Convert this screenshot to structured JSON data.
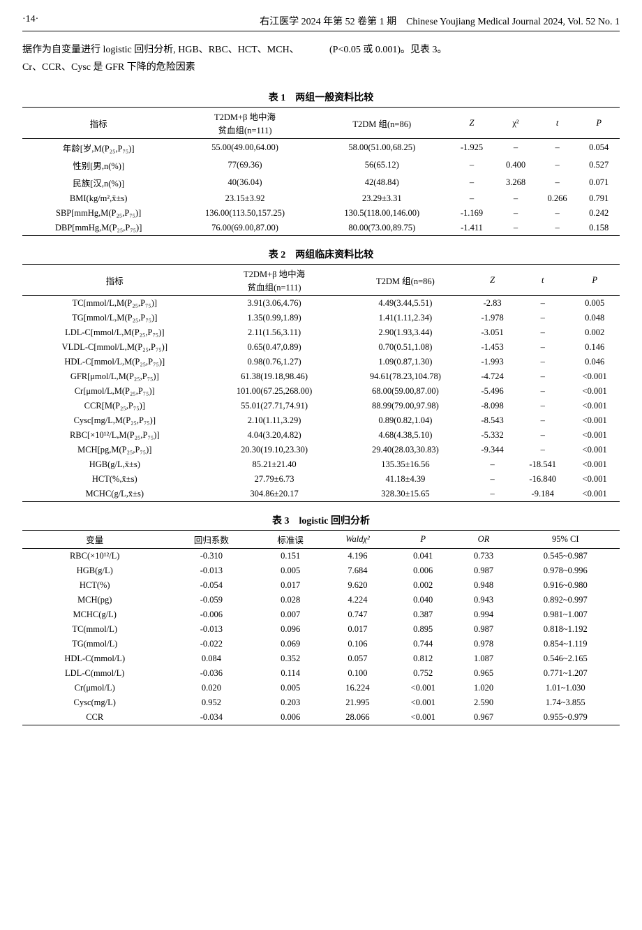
{
  "header": {
    "page": "·14·",
    "center_cn": "右江医学 2024 年第 52 卷第 1 期",
    "right_en": "Chinese Youjiang Medical Journal 2024, Vol. 52 No. 1"
  },
  "body": {
    "left": "据作为自变量进行 logistic 回归分析, HGB、RBC、HCT、MCH、Cr、CCR、Cysc 是 GFR 下降的危险因素",
    "right": "(P<0.05 或 0.001)。见表 3。"
  },
  "tables": {
    "t1": {
      "title": "表 1　两组一般资料比较",
      "head": [
        "指标",
        "T2DM+β 地中海\n贫血组(n=111)",
        "T2DM 组(n=86)",
        "Z",
        "χ²",
        "t",
        "P"
      ],
      "rows": [
        [
          "年龄[岁,M(P₂₅,P₇₅)]",
          "55.00(49.00,64.00)",
          "58.00(51.00,68.25)",
          "-1.925",
          "–",
          "–",
          "0.054"
        ],
        [
          "性别[男,n(%)]",
          "77(69.36)",
          "56(65.12)",
          "–",
          "0.400",
          "–",
          "0.527"
        ],
        [
          "民族[汉,n(%)]",
          "40(36.04)",
          "42(48.84)",
          "–",
          "3.268",
          "–",
          "0.071"
        ],
        [
          "BMI(kg/m²,x̄±s)",
          "23.15±3.92",
          "23.29±3.31",
          "–",
          "–",
          "0.266",
          "0.791"
        ],
        [
          "SBP[mmHg,M(P₂₅,P₇₅)]",
          "136.00(113.50,157.25)",
          "130.5(118.00,146.00)",
          "-1.169",
          "–",
          "–",
          "0.242"
        ],
        [
          "DBP[mmHg,M(P₂₅,P₇₅)]",
          "76.00(69.00,87.00)",
          "80.00(73.00,89.75)",
          "-1.411",
          "–",
          "–",
          "0.158"
        ]
      ]
    },
    "t2": {
      "title": "表 2　两组临床资料比较",
      "head": [
        "指标",
        "T2DM+β 地中海\n贫血组(n=111)",
        "T2DM 组(n=86)",
        "Z",
        "t",
        "P"
      ],
      "rows": [
        [
          "TC[mmol/L,M(P₂₅,P₇₅)]",
          "3.91(3.06,4.76)",
          "4.49(3.44,5.51)",
          "-2.83",
          "–",
          "0.005"
        ],
        [
          "TG[mmol/L,M(P₂₅,P₇₅)]",
          "1.35(0.99,1.89)",
          "1.41(1.11,2.34)",
          "-1.978",
          "–",
          "0.048"
        ],
        [
          "LDL-C[mmol/L,M(P₂₅,P₇₅)]",
          "2.11(1.56,3.11)",
          "2.90(1.93,3.44)",
          "-3.051",
          "–",
          "0.002"
        ],
        [
          "VLDL-C[mmol/L,M(P₂₅,P₇₅)]",
          "0.65(0.47,0.89)",
          "0.70(0.51,1.08)",
          "-1.453",
          "–",
          "0.146"
        ],
        [
          "HDL-C[mmol/L,M(P₂₅,P₇₅)]",
          "0.98(0.76,1.27)",
          "1.09(0.87,1.30)",
          "-1.993",
          "–",
          "0.046"
        ],
        [
          "GFR[μmol/L,M(P₂₅,P₇₅)]",
          "61.38(19.18,98.46)",
          "94.61(78.23,104.78)",
          "-4.724",
          "–",
          "<0.001"
        ],
        [
          "Cr[μmol/L,M(P₂₅,P₇₅)]",
          "101.00(67.25,268.00)",
          "68.00(59.00,87.00)",
          "-5.496",
          "–",
          "<0.001"
        ],
        [
          "CCR[M(P₂₅,P₇₅)]",
          "55.01(27.71,74.91)",
          "88.99(79.00,97.98)",
          "-8.098",
          "–",
          "<0.001"
        ],
        [
          "Cysc[mg/L,M(P₂₅,P₇₅)]",
          "2.10(1.11,3.29)",
          "0.89(0.82,1.04)",
          "-8.543",
          "–",
          "<0.001"
        ],
        [
          "RBC[×10¹²/L,M(P₂₅,P₇₅)]",
          "4.04(3.20,4.82)",
          "4.68(4.38,5.10)",
          "-5.332",
          "–",
          "<0.001"
        ],
        [
          "MCH[pg,M(P₂₅,P₇₅)]",
          "20.30(19.10,23.30)",
          "29.40(28.03,30.83)",
          "-9.344",
          "–",
          "<0.001"
        ],
        [
          "HGB(g/L,x̄±s)",
          "85.21±21.40",
          "135.35±16.56",
          "–",
          "-18.541",
          "<0.001"
        ],
        [
          "HCT(%,x̄±s)",
          "27.79±6.73",
          "41.18±4.39",
          "–",
          "-16.840",
          "<0.001"
        ],
        [
          "MCHC(g/L,x̄±s)",
          "304.86±20.17",
          "328.30±15.65",
          "–",
          "-9.184",
          "<0.001"
        ]
      ]
    },
    "t3": {
      "title": "表 3　logistic 回归分析",
      "head": [
        "变量",
        "回归系数",
        "标准误",
        "Waldχ²",
        "P",
        "OR",
        "95% CI"
      ],
      "rows": [
        [
          "RBC(×10¹²/L)",
          "-0.310",
          "0.151",
          "4.196",
          "0.041",
          "0.733",
          "0.545~0.987"
        ],
        [
          "HGB(g/L)",
          "-0.013",
          "0.005",
          "7.684",
          "0.006",
          "0.987",
          "0.978~0.996"
        ],
        [
          "HCT(%)",
          "-0.054",
          "0.017",
          "9.620",
          "0.002",
          "0.948",
          "0.916~0.980"
        ],
        [
          "MCH(pg)",
          "-0.059",
          "0.028",
          "4.224",
          "0.040",
          "0.943",
          "0.892~0.997"
        ],
        [
          "MCHC(g/L)",
          "-0.006",
          "0.007",
          "0.747",
          "0.387",
          "0.994",
          "0.981~1.007"
        ],
        [
          "TC(mmol/L)",
          "-0.013",
          "0.096",
          "0.017",
          "0.895",
          "0.987",
          "0.818~1.192"
        ],
        [
          "TG(mmol/L)",
          "-0.022",
          "0.069",
          "0.106",
          "0.744",
          "0.978",
          "0.854~1.119"
        ],
        [
          "HDL-C(mmol/L)",
          "0.084",
          "0.352",
          "0.057",
          "0.812",
          "1.087",
          "0.546~2.165"
        ],
        [
          "LDL-C(mmol/L)",
          "-0.036",
          "0.114",
          "0.100",
          "0.752",
          "0.965",
          "0.771~1.207"
        ],
        [
          "Cr(μmol/L)",
          "0.020",
          "0.005",
          "16.224",
          "<0.001",
          "1.020",
          "1.01~1.030"
        ],
        [
          "Cysc(mg/L)",
          "0.952",
          "0.203",
          "21.995",
          "<0.001",
          "2.590",
          "1.74~3.855"
        ],
        [
          "CCR",
          "-0.034",
          "0.006",
          "28.066",
          "<0.001",
          "0.967",
          "0.955~0.979"
        ]
      ]
    }
  },
  "style": {
    "background_color": "#ffffff",
    "text_color": "#000000",
    "font_size_body": 14,
    "font_size_table": 12.5,
    "font_size_title": 14,
    "border_color": "#000000",
    "top_border_width": 1.5,
    "mid_border_width": 1.0
  }
}
